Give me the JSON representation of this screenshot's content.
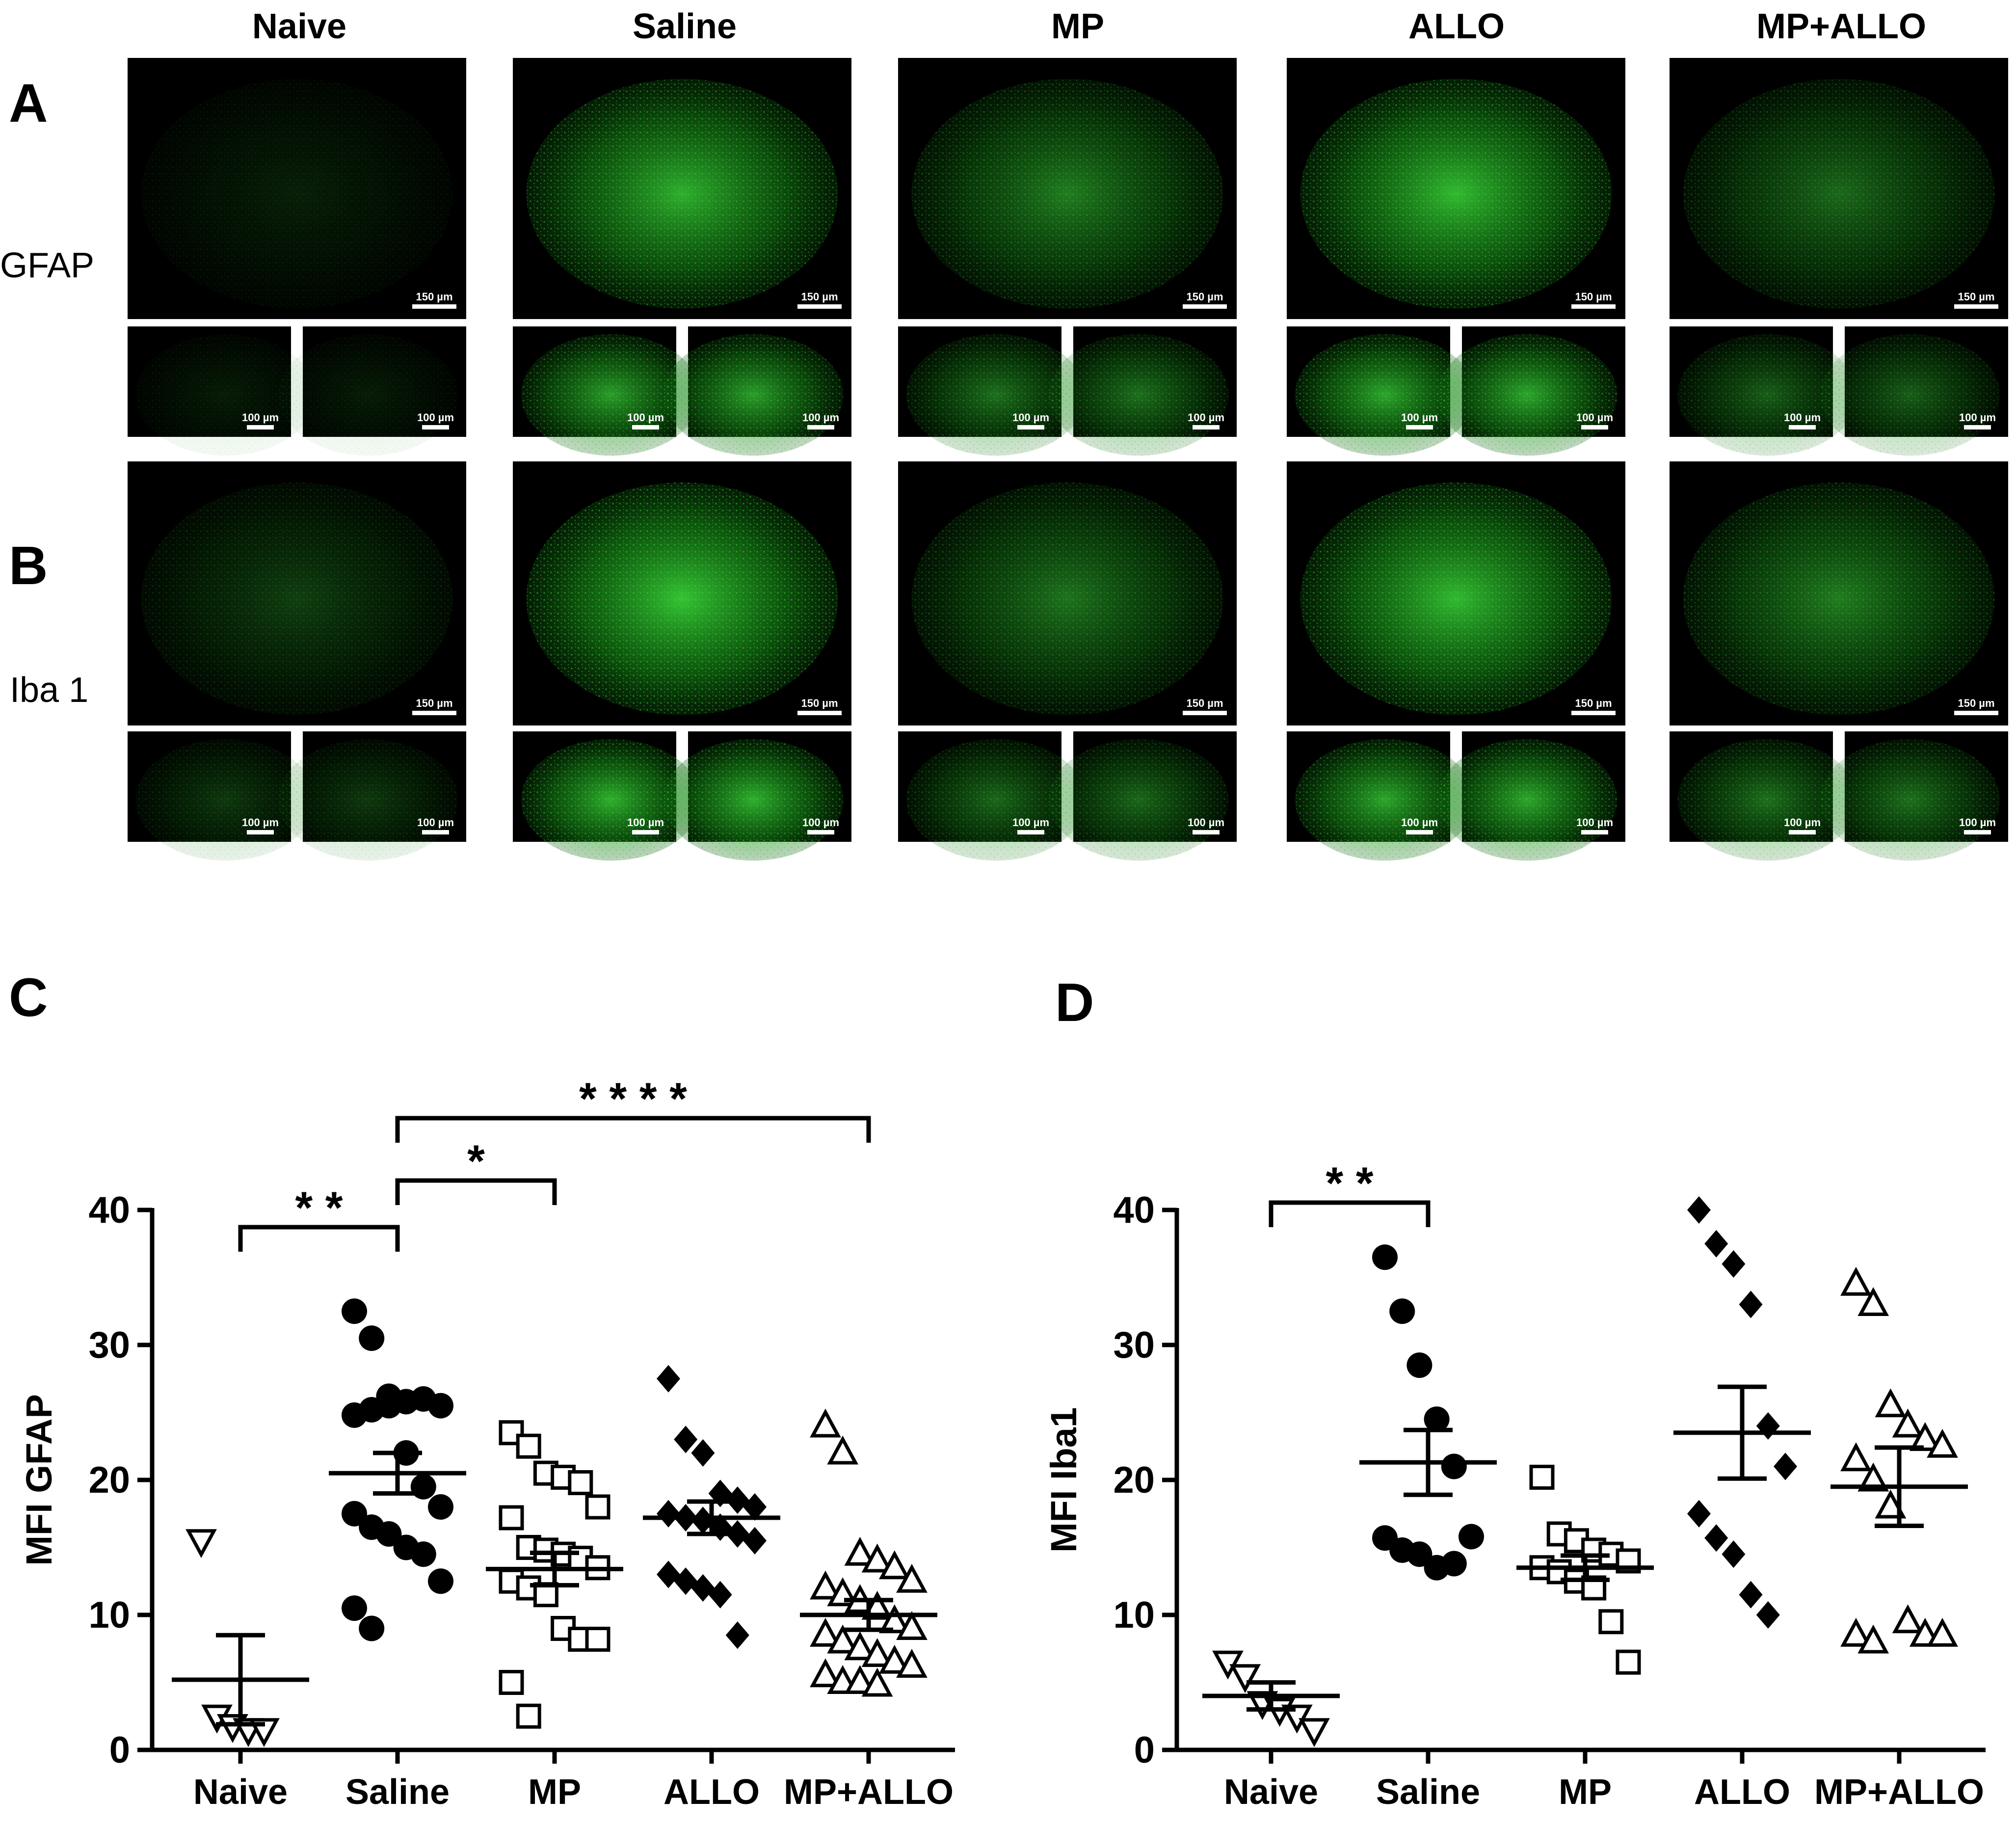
{
  "panel_letters": {
    "a": "A",
    "b": "B",
    "c": "C",
    "d": "D"
  },
  "row_labels": {
    "gfap": "GFAP",
    "iba1": "Iba 1"
  },
  "column_headers": [
    "Naive",
    "Saline",
    "MP",
    "ALLO",
    "MP+ALLO"
  ],
  "scale_bars": {
    "large": "150 µm",
    "small": "100 µm"
  },
  "colors": {
    "stain": "#22c21f",
    "background": "#000000",
    "axis": "#000000"
  },
  "stain_intensity": {
    "gfap": [
      0.15,
      0.85,
      0.6,
      0.9,
      0.5
    ],
    "iba1": [
      0.3,
      0.95,
      0.55,
      0.9,
      0.6
    ]
  },
  "chart_data": [
    {
      "type": "scatter",
      "panel": "C",
      "ylabel": "MFI GFAP",
      "xlabel": "",
      "categories": [
        "Naive",
        "Saline",
        "MP",
        "ALLO",
        "MP+ALLO"
      ],
      "ylim": [
        0,
        40
      ],
      "yticks": [
        0,
        10,
        20,
        30,
        40
      ],
      "markers": [
        "down-triangle-open",
        "circle-filled",
        "square-open",
        "diamond-filled",
        "triangle-open"
      ],
      "points": [
        [
          15.5,
          2.5,
          1.8,
          1.5,
          1.5
        ],
        [
          32.5,
          30.5,
          26.2,
          25.8,
          26.0,
          25.5,
          24.8,
          25.2,
          25.5,
          22.0,
          19.5,
          18.0,
          17.5,
          16.5,
          16.0,
          15.0,
          14.5,
          12.5,
          10.5,
          9.0
        ],
        [
          23.5,
          22.5,
          20.5,
          20.2,
          19.8,
          18.0,
          17.2,
          15.0,
          14.8,
          14.5,
          14.2,
          13.5,
          12.5,
          12.0,
          11.5,
          9.0,
          8.2,
          8.2,
          5.0,
          2.5
        ],
        [
          27.5,
          23.0,
          22.0,
          19.0,
          18.5,
          18.0,
          17.5,
          17.2,
          17.0,
          16.5,
          16.0,
          15.5,
          13.0,
          12.5,
          12.0,
          11.5,
          8.5
        ],
        [
          24.0,
          22.0,
          14.5,
          14.0,
          13.5,
          12.5,
          12.0,
          11.5,
          11.0,
          10.5,
          9.5,
          9.0,
          8.5,
          8.0,
          7.5,
          7.0,
          6.5,
          6.2,
          5.5,
          5.0,
          5.0,
          4.8
        ]
      ],
      "mean": [
        5.2,
        20.5,
        13.4,
        17.2,
        10.0
      ],
      "sem": [
        3.3,
        1.5,
        1.2,
        1.2,
        1.1
      ],
      "significance": [
        {
          "from": 0,
          "to": 1,
          "label": "* *"
        },
        {
          "from": 1,
          "to": 2,
          "label": "*"
        },
        {
          "from": 1,
          "to": 4,
          "label": "* * * *"
        }
      ]
    },
    {
      "type": "scatter",
      "panel": "D",
      "ylabel": "MFI Iba1",
      "xlabel": "",
      "categories": [
        "Naive",
        "Saline",
        "MP",
        "ALLO",
        "MP+ALLO"
      ],
      "ylim": [
        0,
        40
      ],
      "yticks": [
        0,
        10,
        20,
        30,
        40
      ],
      "markers": [
        "down-triangle-open",
        "circle-filled",
        "square-open",
        "diamond-filled",
        "triangle-open"
      ],
      "points": [
        [
          6.5,
          5.5,
          3.5,
          3.0,
          2.5,
          1.5
        ],
        [
          36.5,
          32.5,
          28.5,
          24.5,
          21.0,
          15.8,
          15.7,
          14.8,
          14.5,
          13.5,
          13.8
        ],
        [
          20.2,
          16.0,
          15.5,
          14.8,
          14.5,
          14.0,
          13.5,
          13.2,
          12.5,
          12.0,
          9.5,
          6.5
        ],
        [
          40.0,
          37.5,
          36.0,
          33.0,
          24.0,
          21.0,
          17.5,
          15.7,
          14.5,
          11.5,
          10.0
        ],
        [
          34.5,
          33.0,
          25.5,
          24.0,
          23.0,
          22.5,
          21.5,
          20.0,
          18.0,
          9.5,
          8.5,
          8.5,
          8.5,
          8.0
        ]
      ],
      "mean": [
        4.0,
        21.3,
        13.5,
        23.5,
        19.5
      ],
      "sem": [
        1.0,
        2.4,
        0.9,
        3.4,
        2.9
      ],
      "significance": [
        {
          "from": 0,
          "to": 1,
          "label": "* *"
        }
      ]
    }
  ]
}
